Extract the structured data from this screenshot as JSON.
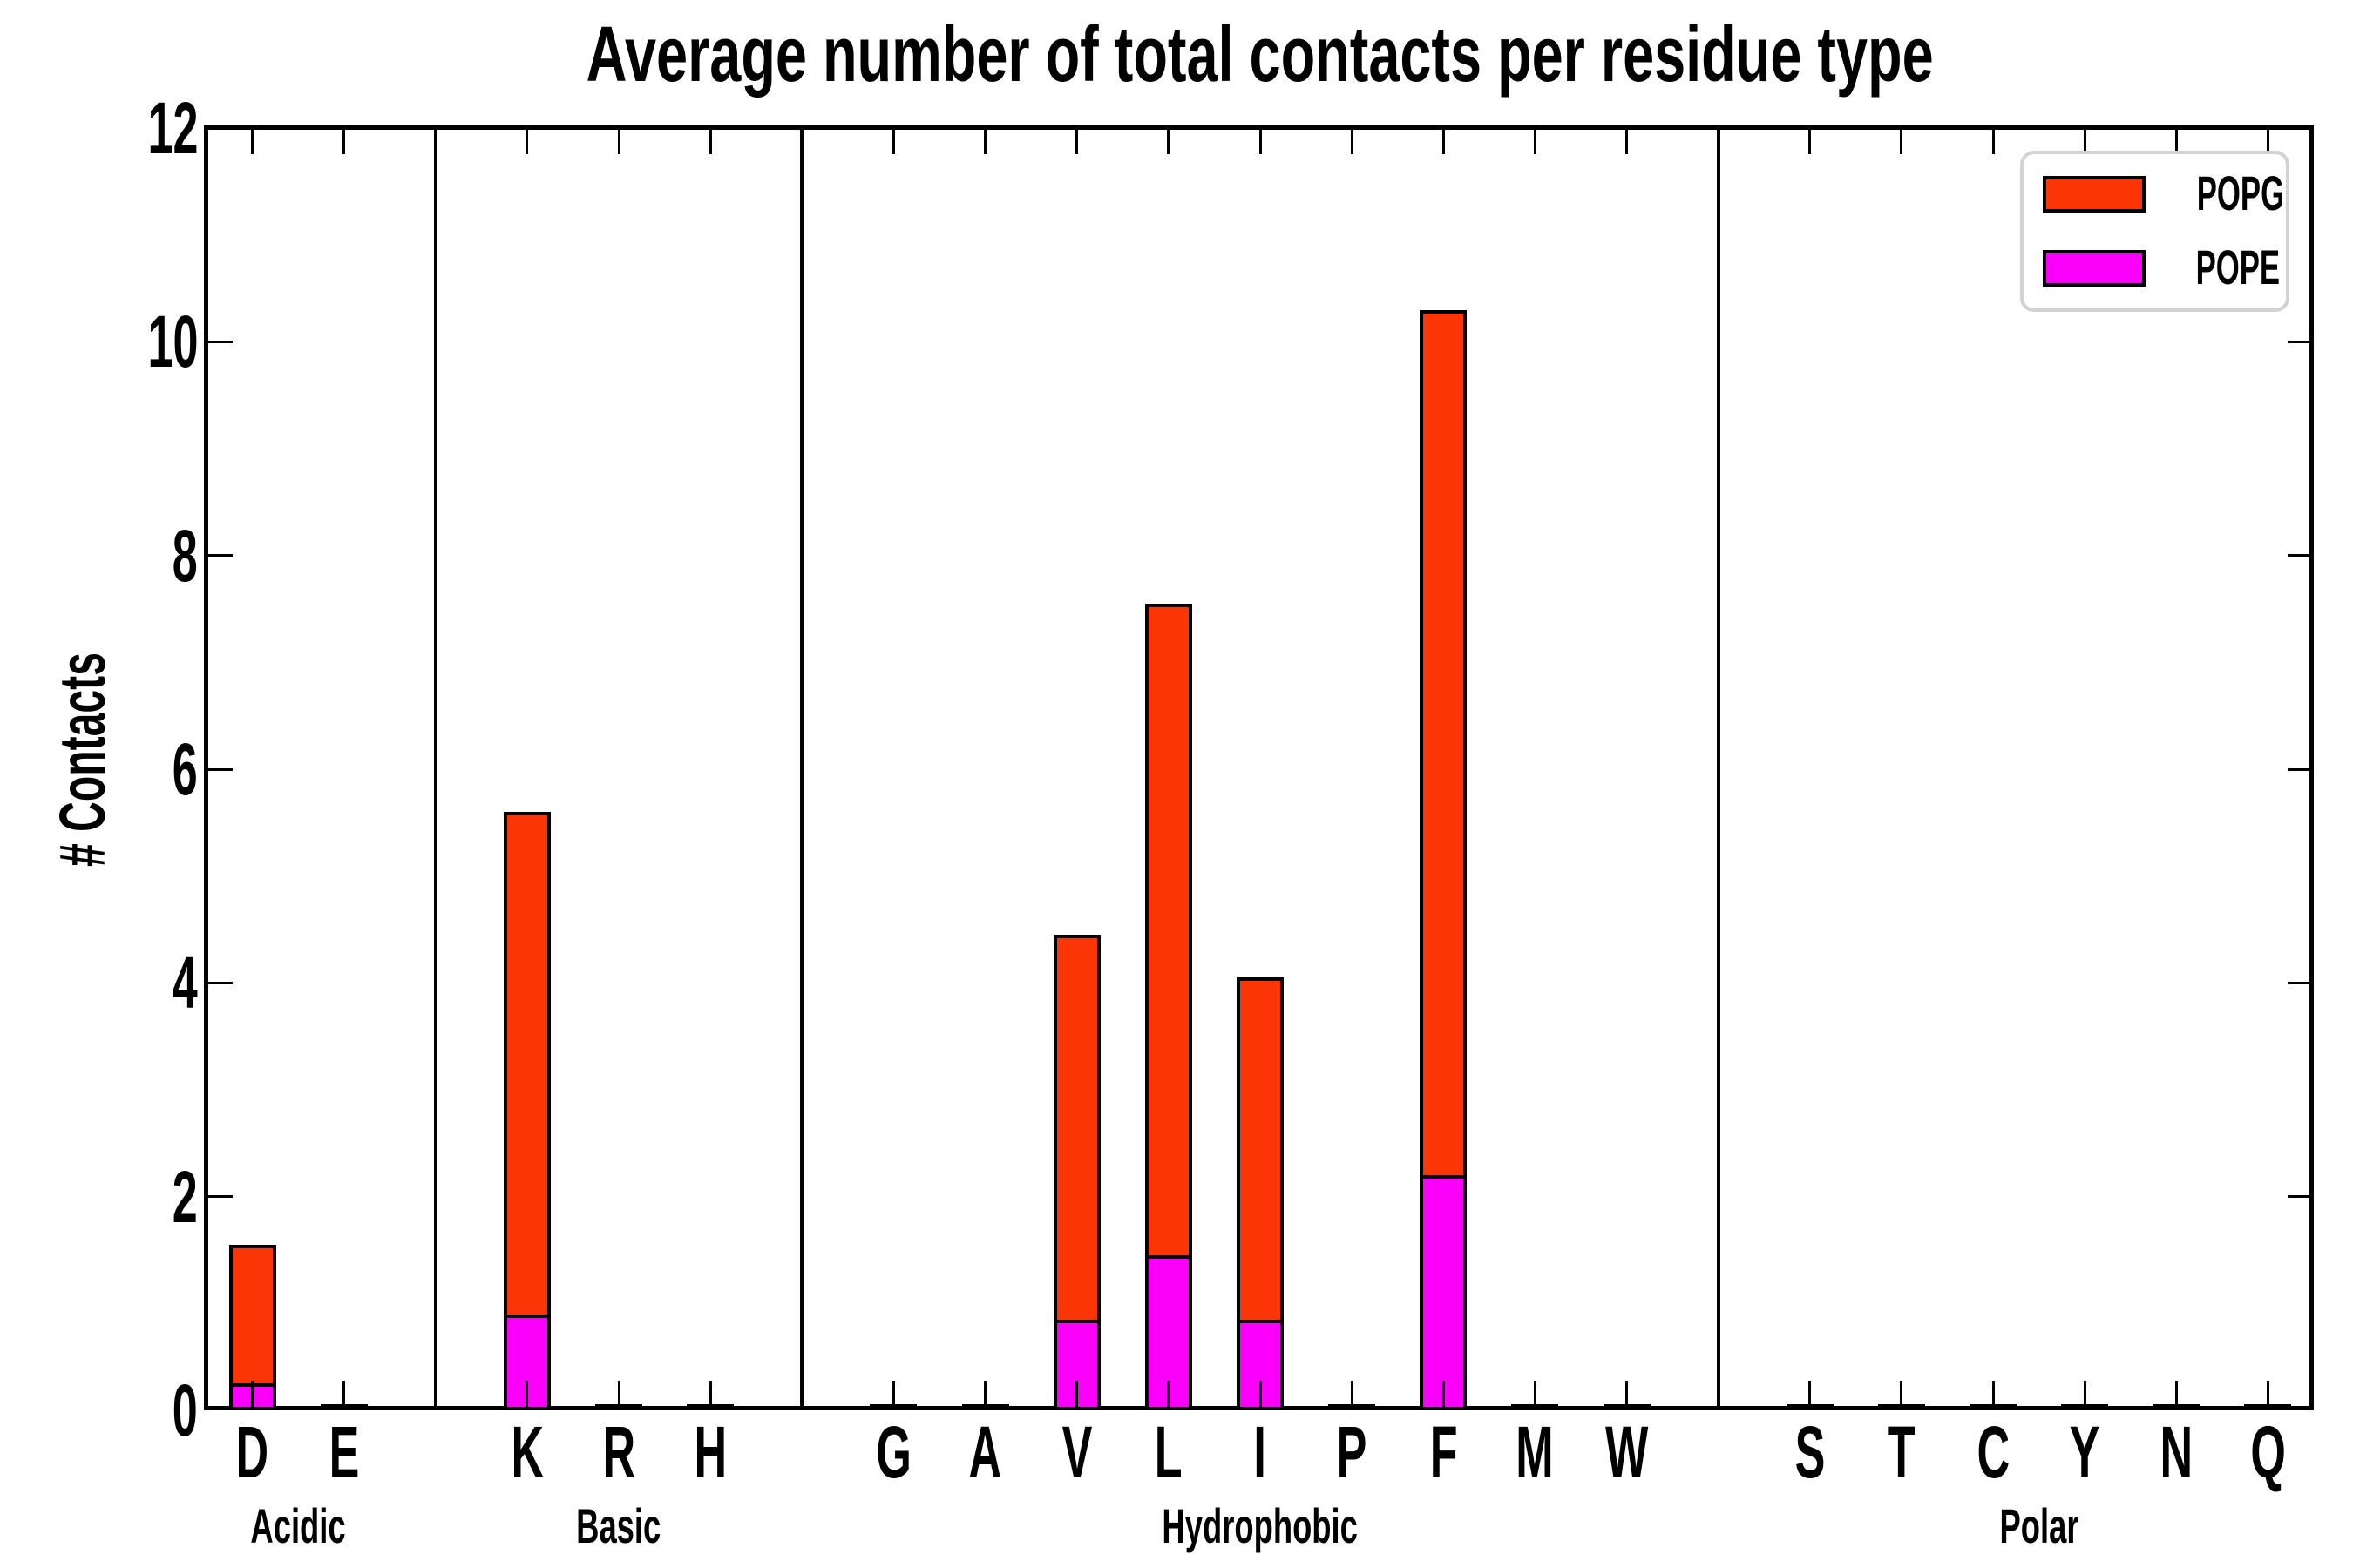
{
  "title": "Average number of total contacts per residue type",
  "chart_data": {
    "type": "bar",
    "stacked": true,
    "title": "Average number of total contacts per residue type",
    "ylabel": "# Contacts",
    "xlabel": "",
    "ylim": [
      0,
      12
    ],
    "yticks": [
      0,
      2,
      4,
      6,
      8,
      10,
      12
    ],
    "grid": false,
    "legend_position": "upper-right",
    "series": [
      {
        "name": "POPG",
        "color": "#fb3505"
      },
      {
        "name": "POPE",
        "color": "#fa00fa"
      }
    ],
    "groups": [
      {
        "label": "Acidic",
        "residues": [
          {
            "letter": "D",
            "pope": 0.25,
            "total": 1.55
          },
          {
            "letter": "E",
            "pope": 0,
            "total": 0
          }
        ]
      },
      {
        "label": "Basic",
        "residues": [
          {
            "letter": "K",
            "pope": 0.9,
            "total": 5.6
          },
          {
            "letter": "R",
            "pope": 0,
            "total": 0
          },
          {
            "letter": "H",
            "pope": 0,
            "total": 0
          }
        ]
      },
      {
        "label": "Hydrophobic",
        "residues": [
          {
            "letter": "G",
            "pope": 0,
            "total": 0
          },
          {
            "letter": "A",
            "pope": 0,
            "total": 0
          },
          {
            "letter": "V",
            "pope": 0.85,
            "total": 4.45
          },
          {
            "letter": "L",
            "pope": 1.45,
            "total": 7.55
          },
          {
            "letter": "I",
            "pope": 0.85,
            "total": 4.05
          },
          {
            "letter": "P",
            "pope": 0,
            "total": 0
          },
          {
            "letter": "F",
            "pope": 2.2,
            "total": 10.3
          },
          {
            "letter": "M",
            "pope": 0,
            "total": 0
          },
          {
            "letter": "W",
            "pope": 0,
            "total": 0
          }
        ]
      },
      {
        "label": "Polar",
        "residues": [
          {
            "letter": "S",
            "pope": 0,
            "total": 0
          },
          {
            "letter": "T",
            "pope": 0,
            "total": 0
          },
          {
            "letter": "C",
            "pope": 0,
            "total": 0
          },
          {
            "letter": "Y",
            "pope": 0,
            "total": 0
          },
          {
            "letter": "N",
            "pope": 0,
            "total": 0
          },
          {
            "letter": "Q",
            "pope": 0,
            "total": 0
          }
        ]
      }
    ]
  }
}
